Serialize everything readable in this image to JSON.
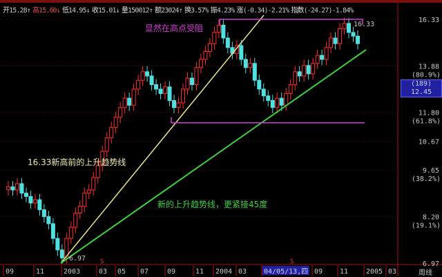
{
  "infobar": {
    "open_label": "开",
    "open": "15.28",
    "high_label": "高",
    "high": "15.60",
    "low_label": "低",
    "low": "14.95",
    "close_label": "收",
    "close": "15.01",
    "vol_label": "量",
    "vol": "150012",
    "amt_label": "额",
    "amt": "23024",
    "turn_label": "换",
    "turn": "3.57%",
    "amp_label": "振",
    "amp": "4.23%",
    "chg_label": "涨",
    "chg": "(-0.34)-2.21%",
    "idx_label": "指数",
    "idx": "(-24.27)-1.84%"
  },
  "annotations": {
    "resistance": "显然在高点受阻",
    "old_trend": "16.33新高前的上升趋势线",
    "new_trend": "新的上升趋势线，更紧接45度",
    "high_mark": "16.33",
    "low_mark": "6.97"
  },
  "cursor_box": {
    "count": "(189)",
    "price": "12.45"
  },
  "period_label": "周线",
  "colors": {
    "up": "#ff3030",
    "down": "#50e0e0",
    "old_trend": "#f0e890",
    "new_trend": "#40d040",
    "resistance": "#d040d0",
    "axis": "#a01818"
  },
  "chart_data": {
    "type": "candlestick",
    "scale": "log",
    "ylim": [
      6.97,
      16.33
    ],
    "y_ticks": [
      {
        "v": 16.33,
        "label": "16.33"
      },
      {
        "v": 13.88,
        "label": "13.88",
        "sub": "(80.9%)"
      },
      {
        "v": 11.8,
        "label": "11.80",
        "sub": "(61.8%)"
      },
      {
        "v": 10.67,
        "label": "10.67"
      },
      {
        "v": 9.65,
        "label": "9.65",
        "sub": "(38.2%)"
      },
      {
        "v": 8.2,
        "label": "8.20",
        "sub": "(19.1%)"
      },
      {
        "v": 6.97,
        "label": "6.97"
      }
    ],
    "x_ticks": [
      "09",
      "11",
      "2003",
      "03",
      "05",
      "07",
      "09",
      "11",
      "2004",
      "03",
      "04/05/13,四",
      "09",
      "11",
      "2005",
      "03"
    ],
    "close": [
      9.1,
      9.0,
      9.2,
      8.9,
      8.8,
      8.6,
      8.7,
      8.4,
      8.2,
      8.0,
      7.6,
      7.3,
      7.1,
      7.6,
      7.9,
      8.3,
      8.5,
      8.9,
      9.0,
      9.4,
      9.8,
      10.3,
      10.8,
      11.2,
      11.6,
      12.0,
      12.4,
      12.1,
      12.8,
      13.2,
      13.6,
      13.4,
      13.0,
      12.8,
      12.6,
      12.9,
      12.3,
      12.0,
      12.2,
      12.8,
      13.3,
      13.0,
      13.8,
      14.2,
      14.6,
      15.0,
      15.6,
      16.0,
      15.3,
      14.8,
      14.5,
      14.9,
      14.2,
      13.8,
      14.0,
      13.2,
      12.8,
      12.5,
      12.3,
      12.0,
      12.4,
      12.1,
      12.6,
      13.0,
      13.6,
      13.4,
      13.9,
      13.5,
      14.0,
      14.4,
      14.2,
      14.8,
      15.3,
      15.0,
      15.8,
      16.1,
      15.6,
      15.4,
      15.0
    ],
    "resistance_level": 16.33,
    "support_level": 11.6
  }
}
